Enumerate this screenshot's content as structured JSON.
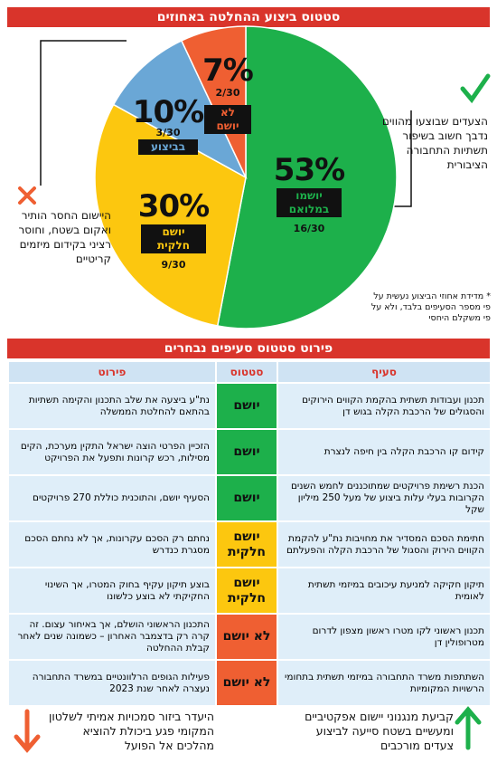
{
  "chart_data": {
    "type": "pie",
    "title": "סטטוס ביצוע ההחלטה באחוזים",
    "categories": [
      "יושמו במלואם",
      "יושם חלקית",
      "בביצוע",
      "לא יושם"
    ],
    "values": [
      53,
      30,
      10,
      7
    ],
    "value_labels": [
      "53%",
      "30%",
      "10%",
      "7%"
    ],
    "fraction_labels": [
      "16/30",
      "9/30",
      "3/30",
      "2/30"
    ],
    "colors": [
      "#1db04b",
      "#fcc70f",
      "#6aa7d6",
      "#ef5f32"
    ],
    "annotations": [
      "הצעדים שבוצעו מהווים נדבך חשוב בשיפור תשתיות התחבורה הציבורית",
      "היישום החסר הותיר ואקום בשטח, וחוסר רציני בקידום מיזמים קריטיים"
    ],
    "footnote": "* מדידת אחוזי הביצוע נעשית על פי מספר הסעיפים בלבד, ולא על פי משקלם היחסי"
  },
  "table": {
    "title": "פירוט סטטוס סעיפים נבחרים",
    "headers": [
      "סעיף",
      "סטטוס",
      "פירוט"
    ],
    "rows": [
      {
        "item": "תכנון ועבודות תשתית בהקמת הקווים הירוקים והסגולים של הרכבת הקלה בגוש דן",
        "status": "יושם",
        "detail": "נת\"ע ביצעה את שלב התכנון והקימה תשתיות בהתאם להחלטת הממשלה",
        "color": "#1db04b"
      },
      {
        "item": "קידום קו הרכבת הקלה בין חיפה לנצרת",
        "status": "יושם",
        "detail": "הזכיין הפרטי הוצה ישראל התקין מערכת, הקים מסילות, רכש קרונות ותפעל את הפרויקט",
        "color": "#1db04b"
      },
      {
        "item": "הכנת רשימת פרויקטים שמתוכננים לחמש השנים הקרובות בעלי עלות ביצוע של מעל 250 מיליון שקל",
        "status": "יושם",
        "detail": "הסעיף יושם, והתוכנית כוללת 270 פרויקטים",
        "color": "#1db04b"
      },
      {
        "item": "חתימת הסכם המסדיר את מחויבות נת\"ע להקמת הקווים הירוק והסגול של הרכבת הקלה והפעלתם",
        "status": "יושם חלקית",
        "detail": "נחתם רק הסכם עקרונות, אך לא נחתם הסכם מסגרת כנדרש",
        "color": "#fcc70f"
      },
      {
        "item": "תיקון חקיקה למניעת עיכובים במיזמי תשתית לאומית",
        "status": "יושם חלקית",
        "detail": "בוצע תיקון עקיף בחוק המטרו, אך השינוי החקיקתי לא בוצע כלשונו",
        "color": "#fcc70f"
      },
      {
        "item": "תכנון ראשוני לקו מטרו ראשון מצפון לדרום מטרופולין דן",
        "status": "לא יושם",
        "detail": "התכנון הראשוני הושלם, אך באיחור עצום. זה קרה רק בדצמבר האחרון – כשמונה שנים לאחר קבלת ההחלטה",
        "color": "#ef5f32"
      },
      {
        "item": "השתתפות משרד התחבורה במיזמי תשתית בתחומי הרשויות המקומיות",
        "status": "לא יושם",
        "detail": "פעילות הגופים הרלוונטיים במשרד התחבורה נעצרה לאחר שנת 2023",
        "color": "#ef5f32"
      }
    ]
  },
  "footer": {
    "positive": "קביעת מנגנוני יישום אפקטיביים ומעשיים בשטח סייעה לביצוע צעדים מורכבים",
    "negative": "היעדר ביזור סמכויות אמיתי לשלטון המקומי פגע ביכולת להוציא מהלכים אל הפועל"
  }
}
